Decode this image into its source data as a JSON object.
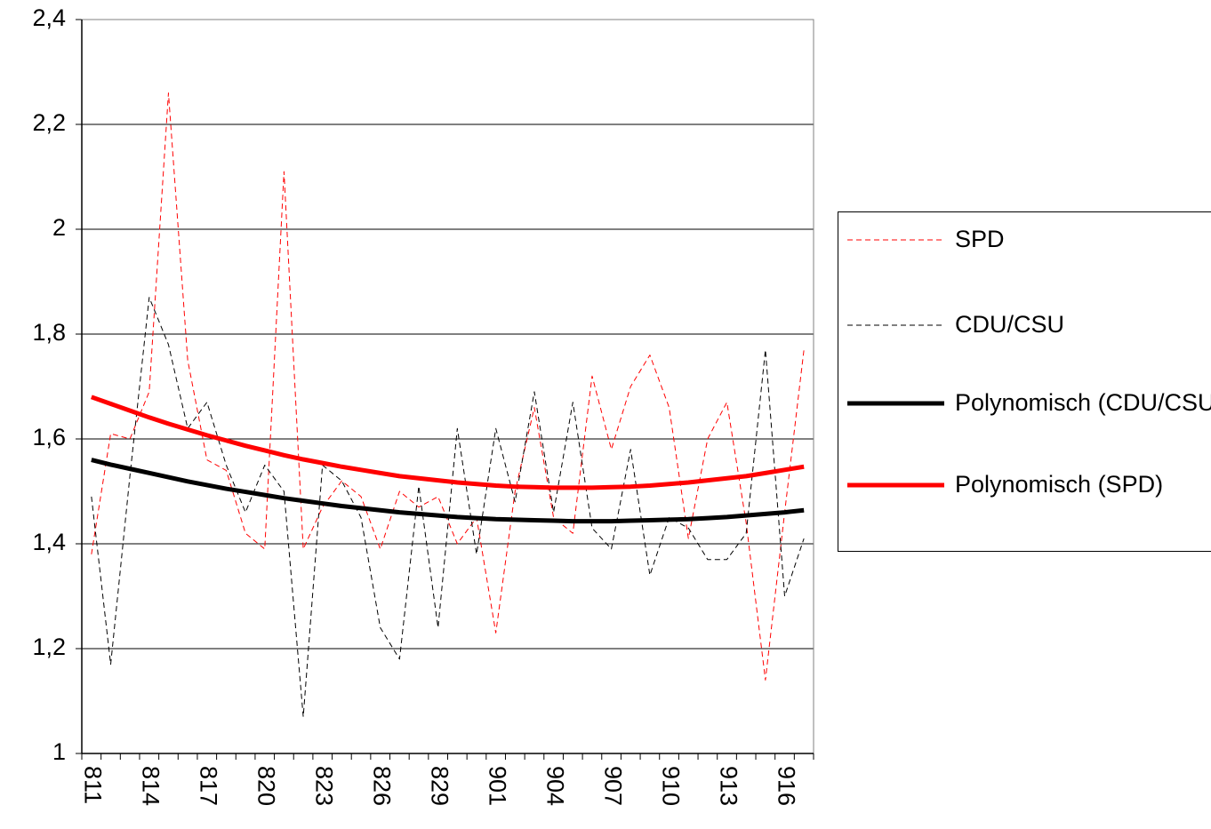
{
  "chart_data": {
    "type": "line",
    "categories": [
      "811",
      null,
      null,
      "814",
      null,
      null,
      "817",
      null,
      null,
      "820",
      null,
      null,
      "823",
      null,
      null,
      "826",
      null,
      null,
      "829",
      null,
      null,
      "901",
      null,
      null,
      "904",
      null,
      null,
      "907",
      null,
      null,
      "910",
      null,
      null,
      "913",
      null,
      null,
      "916",
      null
    ],
    "series": [
      {
        "name": "SPD",
        "color": "#ff0000",
        "style": "dashed",
        "width": 1,
        "values": [
          1.38,
          1.61,
          1.6,
          1.69,
          2.26,
          1.75,
          1.56,
          1.54,
          1.42,
          1.39,
          2.11,
          1.39,
          1.47,
          1.52,
          1.49,
          1.39,
          1.5,
          1.47,
          1.49,
          1.4,
          1.45,
          1.23,
          1.5,
          1.66,
          1.45,
          1.42,
          1.72,
          1.58,
          1.7,
          1.76,
          1.66,
          1.41,
          1.6,
          1.67,
          1.44,
          1.14,
          1.46,
          1.77
        ]
      },
      {
        "name": "CDU/CSU",
        "color": "#000000",
        "style": "dashed",
        "width": 1,
        "values": [
          1.49,
          1.17,
          1.53,
          1.87,
          1.78,
          1.62,
          1.67,
          1.55,
          1.46,
          1.55,
          1.5,
          1.07,
          1.55,
          1.52,
          1.45,
          1.24,
          1.18,
          1.51,
          1.24,
          1.62,
          1.38,
          1.62,
          1.48,
          1.69,
          1.46,
          1.67,
          1.43,
          1.39,
          1.58,
          1.34,
          1.45,
          1.43,
          1.37,
          1.37,
          1.42,
          1.77,
          1.3,
          1.41
        ]
      },
      {
        "name": "Polynomisch (CDU/CSU)",
        "color": "#000000",
        "style": "solid",
        "width": 5,
        "values": [
          1.56,
          1.551,
          1.543,
          1.535,
          1.527,
          1.519,
          1.512,
          1.505,
          1.499,
          1.493,
          1.487,
          1.482,
          1.477,
          1.472,
          1.468,
          1.464,
          1.46,
          1.457,
          1.454,
          1.451,
          1.449,
          1.447,
          1.446,
          1.445,
          1.444,
          1.443,
          1.443,
          1.443,
          1.444,
          1.445,
          1.446,
          1.447,
          1.449,
          1.451,
          1.454,
          1.457,
          1.46,
          1.464
        ]
      },
      {
        "name": "Polynomisch (SPD)",
        "color": "#ff0000",
        "style": "solid",
        "width": 5,
        "values": [
          1.68,
          1.667,
          1.654,
          1.641,
          1.629,
          1.618,
          1.607,
          1.597,
          1.587,
          1.578,
          1.569,
          1.561,
          1.554,
          1.547,
          1.541,
          1.535,
          1.529,
          1.525,
          1.521,
          1.517,
          1.514,
          1.511,
          1.509,
          1.508,
          1.507,
          1.507,
          1.507,
          1.508,
          1.509,
          1.511,
          1.514,
          1.517,
          1.521,
          1.525,
          1.529,
          1.535,
          1.541,
          1.547
        ]
      }
    ],
    "ylim": [
      1,
      2.4
    ],
    "yticks": [
      1,
      {
        "value": 1.2,
        "label": "1,2"
      },
      {
        "value": 1.4,
        "label": "1,4"
      },
      {
        "value": 1.6,
        "label": "1,6"
      },
      {
        "value": 1.8,
        "label": "1,8"
      },
      2,
      {
        "value": 2.2,
        "label": "2,2"
      },
      {
        "value": 2.4,
        "label": "2,4"
      }
    ],
    "grid": true,
    "legend": "right"
  }
}
